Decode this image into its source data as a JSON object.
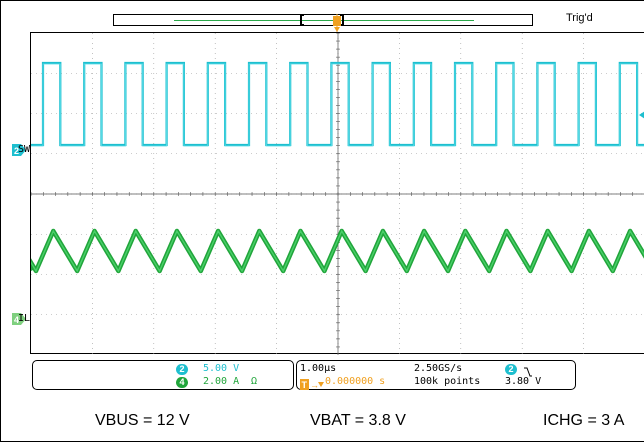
{
  "status": {
    "trigger_state": "Trig'd"
  },
  "channels": [
    {
      "id": "2",
      "label": "SW",
      "color": "#1ebfcf",
      "scale": "5.00 V"
    },
    {
      "id": "4",
      "label": "IL",
      "color": "#21a53b",
      "scale": "2.00 A"
    }
  ],
  "readout": {
    "ch2_scale": "5.00 V",
    "ch4_scale": "2.00 A",
    "horizontal_scale": "1.00µs",
    "sample_rate": "2.50GS/s",
    "trigger_position": "0.000000 s",
    "record_length": "100k points",
    "trigger_source": "2",
    "trigger_level": "3.80 V"
  },
  "captions": {
    "vbus": "VBUS = 12 V",
    "vbat": "VBAT = 3.8 V",
    "ichg": "ICHG = 3 A"
  },
  "colors": {
    "sw_trace": "#1ebfcf",
    "il_trace": "#21a53b",
    "trigger_marker": "#f0a020"
  },
  "icons": {
    "trigger_marker": "trigger-position-icon",
    "ch4_coupling": "ohm-icon",
    "trigger_slope": "falling-edge-icon"
  }
}
